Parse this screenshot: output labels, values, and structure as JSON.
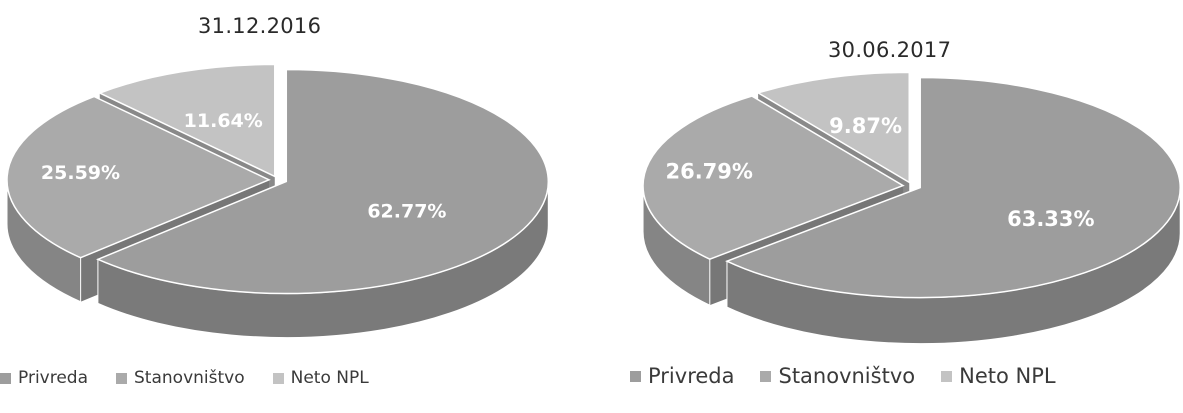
{
  "colors": {
    "privreda": "#9d9d9d",
    "stanovnistvo": "#aaaaaa",
    "neto_npl": "#c3c3c3",
    "label": "#ffffff"
  },
  "chart_data": [
    {
      "type": "pie",
      "title": "31.12.2016",
      "slices": [
        {
          "name": "Privreda",
          "value": 62.77,
          "label": "62.77%"
        },
        {
          "name": "Stanovništvo",
          "value": 25.59,
          "label": "25.59%"
        },
        {
          "name": "Neto NPL",
          "value": 11.64,
          "label": "11.64%"
        }
      ],
      "legend": [
        "Privreda",
        "Stanovništvo",
        "Neto NPL"
      ],
      "legend_position": "bottom"
    },
    {
      "type": "pie",
      "title": "30.06.2017",
      "slices": [
        {
          "name": "Privreda",
          "value": 63.33,
          "label": "63.33%"
        },
        {
          "name": "Stanovništvo",
          "value": 26.79,
          "label": "26.79%"
        },
        {
          "name": "Neto NPL",
          "value": 9.87,
          "label": "9.87%"
        }
      ],
      "legend": [
        "Privreda",
        "Stanovništvo",
        "Neto NPL"
      ],
      "legend_position": "bottom"
    }
  ]
}
